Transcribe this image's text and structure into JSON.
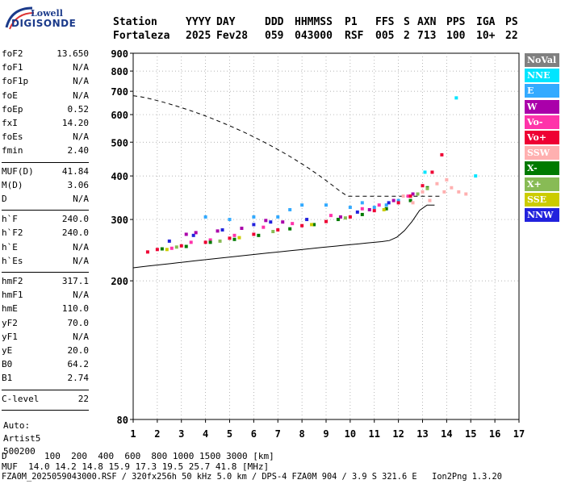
{
  "logo": {
    "brand_top": "Lowell",
    "brand_bottom": "DIGISONDE"
  },
  "header": {
    "columns": [
      {
        "label": "Station",
        "value": "Fortaleza"
      },
      {
        "label": "YYYY",
        "value": "2025"
      },
      {
        "label": "DAY",
        "value": "Fev28"
      },
      {
        "label": "DDD",
        "value": "059"
      },
      {
        "label": "HHMMSS",
        "value": "043000"
      },
      {
        "label": "P1",
        "value": "RSF"
      },
      {
        "label": "FFS",
        "value": "005"
      },
      {
        "label": "S",
        "value": "2"
      },
      {
        "label": "AXN",
        "value": "713"
      },
      {
        "label": "PPS",
        "value": "100"
      },
      {
        "label": "IGA",
        "value": "10+"
      },
      {
        "label": "PS",
        "value": "22"
      }
    ]
  },
  "parameters": {
    "group1": [
      {
        "label": "foF2",
        "value": "13.650"
      },
      {
        "label": "foF1",
        "value": "N/A"
      },
      {
        "label": "foF1p",
        "value": "N/A"
      },
      {
        "label": "foE",
        "value": "N/A"
      },
      {
        "label": "foEp",
        "value": "0.52"
      },
      {
        "label": "fxI",
        "value": "14.20"
      },
      {
        "label": "foEs",
        "value": "N/A"
      },
      {
        "label": "fmin",
        "value": "2.40"
      }
    ],
    "group2": [
      {
        "label": "MUF(D)",
        "value": "41.84"
      },
      {
        "label": "M(D)",
        "value": "3.06"
      },
      {
        "label": "D",
        "value": "N/A"
      }
    ],
    "group3": [
      {
        "label": "h`F",
        "value": "240.0"
      },
      {
        "label": "h`F2",
        "value": "240.0"
      },
      {
        "label": "h`E",
        "value": "N/A"
      },
      {
        "label": "h`Es",
        "value": "N/A"
      }
    ],
    "group4": [
      {
        "label": "hmF2",
        "value": "317.1"
      },
      {
        "label": "hmF1",
        "value": "N/A"
      },
      {
        "label": "hmE",
        "value": "110.0"
      },
      {
        "label": "yF2",
        "value": "70.0"
      },
      {
        "label": "yF1",
        "value": "N/A"
      },
      {
        "label": "yE",
        "value": "20.0"
      },
      {
        "label": "B0",
        "value": "64.2"
      },
      {
        "label": "B1",
        "value": "2.74"
      }
    ],
    "group5": [
      {
        "label": "C-level",
        "value": "22"
      }
    ],
    "auto": [
      "Auto:",
      "Artist5",
      "500200"
    ]
  },
  "legend": [
    {
      "label": "NoVal",
      "color": "#808080"
    },
    {
      "label": "NNE",
      "color": "#00e5ff"
    },
    {
      "label": "E",
      "color": "#33aaff"
    },
    {
      "label": "W",
      "color": "#aa00aa"
    },
    {
      "label": "Vo-",
      "color": "#ff33aa"
    },
    {
      "label": "Vo+",
      "color": "#ee0033"
    },
    {
      "label": "SSW",
      "color": "#ffb0b0"
    },
    {
      "label": "X-",
      "color": "#007a00"
    },
    {
      "label": "X+",
      "color": "#88bb55"
    },
    {
      "label": "SSE",
      "color": "#cccc00"
    },
    {
      "label": "NNW",
      "color": "#2222dd"
    }
  ],
  "chart_data": {
    "type": "scatter",
    "xlim": [
      1,
      17
    ],
    "ylim": [
      80,
      900
    ],
    "y_scale": "log",
    "x_ticks": [
      "1",
      "2",
      "3",
      "4",
      "5",
      "6",
      "7",
      "8",
      "9",
      "10",
      "11",
      "12",
      "13",
      "14",
      "15",
      "16",
      "17"
    ],
    "y_ticks": [
      "80",
      "200",
      "300",
      "400",
      "500",
      "600",
      "700",
      "800",
      "900"
    ],
    "grid": "dotted",
    "series": [
      {
        "name": "E",
        "points": [
          [
            4,
            305
          ],
          [
            5,
            300
          ],
          [
            6,
            305
          ],
          [
            7,
            305
          ],
          [
            7.5,
            320
          ],
          [
            8,
            330
          ],
          [
            9,
            330
          ],
          [
            10,
            325
          ],
          [
            10.5,
            335
          ],
          [
            11,
            325
          ],
          [
            11.5,
            330
          ],
          [
            12,
            340
          ]
        ]
      },
      {
        "name": "W",
        "points": [
          [
            3.2,
            272
          ],
          [
            3.6,
            275
          ],
          [
            4.5,
            278
          ],
          [
            5.5,
            283
          ],
          [
            6.5,
            298
          ],
          [
            7.2,
            295
          ],
          [
            9.6,
            305
          ],
          [
            10.8,
            320
          ],
          [
            11.8,
            340
          ],
          [
            12.6,
            355
          ]
        ]
      },
      {
        "name": "Vo-",
        "points": [
          [
            2.6,
            248
          ],
          [
            3.4,
            258
          ],
          [
            4.2,
            262
          ],
          [
            5.2,
            270
          ],
          [
            6.4,
            285
          ],
          [
            7.6,
            292
          ],
          [
            9.2,
            308
          ],
          [
            10.5,
            322
          ],
          [
            11.2,
            330
          ],
          [
            12.4,
            350
          ]
        ]
      },
      {
        "name": "Vo+",
        "points": [
          [
            1.6,
            242
          ],
          [
            2,
            246
          ],
          [
            3,
            252
          ],
          [
            4,
            258
          ],
          [
            5,
            265
          ],
          [
            6,
            272
          ],
          [
            7,
            280
          ],
          [
            8,
            288
          ],
          [
            9,
            296
          ],
          [
            10,
            305
          ],
          [
            11,
            318
          ],
          [
            12,
            335
          ],
          [
            12.5,
            350
          ],
          [
            13,
            375
          ],
          [
            13.4,
            410
          ],
          [
            13.8,
            460
          ]
        ]
      },
      {
        "name": "X-",
        "points": [
          [
            2.2,
            247
          ],
          [
            3.2,
            251
          ],
          [
            4.2,
            258
          ],
          [
            5.2,
            263
          ],
          [
            6.2,
            270
          ],
          [
            7.5,
            282
          ],
          [
            8.5,
            290
          ],
          [
            9.5,
            300
          ],
          [
            10.5,
            310
          ],
          [
            11.5,
            322
          ],
          [
            12.5,
            340
          ],
          [
            13.2,
            370
          ]
        ]
      },
      {
        "name": "X+",
        "points": [
          [
            2.8,
            250
          ],
          [
            4.6,
            260
          ],
          [
            6.8,
            277
          ],
          [
            9.8,
            303
          ],
          [
            12.8,
            355
          ],
          [
            13.2,
            368
          ]
        ]
      },
      {
        "name": "SSE",
        "points": [
          [
            2.4,
            246
          ],
          [
            5.4,
            266
          ],
          [
            8.4,
            290
          ],
          [
            11.4,
            320
          ]
        ]
      },
      {
        "name": "NNW",
        "points": [
          [
            2.5,
            260
          ],
          [
            3.5,
            270
          ],
          [
            4.7,
            280
          ],
          [
            6,
            290
          ],
          [
            6.7,
            295
          ],
          [
            8.2,
            300
          ],
          [
            10.3,
            315
          ],
          [
            11.6,
            335
          ]
        ]
      },
      {
        "name": "SSW",
        "points": [
          [
            12.2,
            350
          ],
          [
            12.6,
            335
          ],
          [
            13,
            360
          ],
          [
            13.3,
            340
          ],
          [
            13.6,
            380
          ],
          [
            13.9,
            360
          ],
          [
            14.2,
            370
          ],
          [
            14.5,
            360
          ],
          [
            14.8,
            355
          ],
          [
            14,
            390
          ]
        ]
      },
      {
        "name": "NNE",
        "points": [
          [
            14.4,
            670
          ],
          [
            15.2,
            400
          ],
          [
            13.1,
            410
          ]
        ]
      }
    ]
  },
  "footer": {
    "row1_label": "D",
    "row1_values": "100  200  400  600  800 1000 1500 3000 [km]",
    "row2_label": "MUF",
    "row2_values": "14.0 14.2 14.8 15.9 17.3 19.5 25.7 41.8 [MHz]",
    "row3": "FZA0M_2025059043000.RSF / 320fx256h 50 kHz 5.0 km / DPS-4 FZA0M 904 / 3.9 S 321.6 E   Ion2Png 1.3.20"
  }
}
